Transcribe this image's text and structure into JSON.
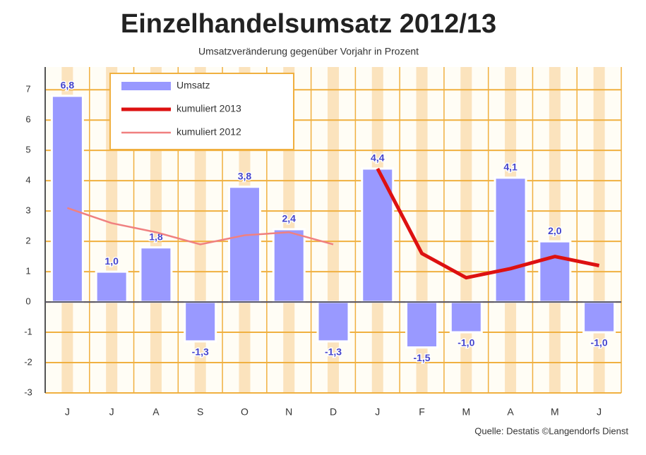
{
  "chart_data": {
    "type": "bar",
    "title": "Einzelhandelsumsatz 2012/13",
    "subtitle": "Umsatzveränderung gegenüber Vorjahr in Prozent",
    "source": "Quelle: Destatis ©Langendorfs Dienst",
    "categories": [
      "J",
      "J",
      "A",
      "S",
      "O",
      "N",
      "D",
      "J",
      "F",
      "M",
      "A",
      "M",
      "J"
    ],
    "series": [
      {
        "name": "Umsatz",
        "type": "bar",
        "color": "#9999ff",
        "values": [
          6.8,
          1.0,
          1.8,
          -1.3,
          3.8,
          2.4,
          -1.3,
          4.4,
          -1.5,
          -1.0,
          4.1,
          2.0,
          -1.0
        ],
        "value_labels": [
          "6,8",
          "1,0",
          "1,8",
          "-1,3",
          "3,8",
          "2,4",
          "-1,3",
          "4,4",
          "-1,5",
          "-1,0",
          "4,1",
          "2,0",
          "-1,0"
        ]
      },
      {
        "name": "kumuliert 2013",
        "type": "line",
        "color": "#dd1111",
        "values": [
          null,
          null,
          null,
          null,
          null,
          null,
          null,
          4.4,
          1.6,
          0.8,
          1.1,
          1.5,
          1.2
        ]
      },
      {
        "name": "kumuliert 2012",
        "type": "line",
        "color": "#f08080",
        "values": [
          3.1,
          2.6,
          2.3,
          1.9,
          2.2,
          2.3,
          1.9,
          null,
          null,
          null,
          null,
          null,
          null
        ]
      }
    ],
    "ylim": [
      -3,
      7.75
    ],
    "yticks": [
      -3,
      -2,
      -1,
      0,
      1,
      2,
      3,
      4,
      5,
      6,
      7
    ],
    "grid": true,
    "grid_color": "#f0b040"
  }
}
